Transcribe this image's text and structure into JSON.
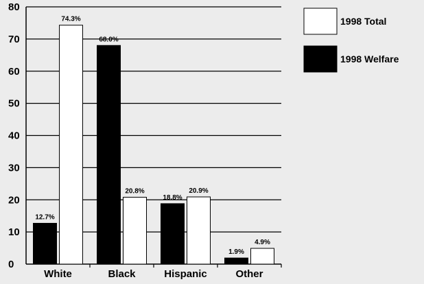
{
  "chart_data": {
    "type": "bar",
    "categories": [
      "White",
      "Black",
      "Hispanic",
      "Other"
    ],
    "series": [
      {
        "name": "1998 Welfare",
        "color": "#000000",
        "values": [
          12.7,
          68.0,
          18.8,
          1.9
        ],
        "labels": [
          "12.7%",
          "68.0%",
          "18.8%",
          "1.9%"
        ]
      },
      {
        "name": "1998 Total",
        "color": "#ffffff",
        "values": [
          74.3,
          20.8,
          20.9,
          4.9
        ],
        "labels": [
          "74.3%",
          "20.8%",
          "20.9%",
          "4.9%"
        ]
      }
    ],
    "ylim": [
      0,
      80
    ],
    "yticks": [
      "0",
      "10",
      "20",
      "30",
      "40",
      "50",
      "60",
      "70",
      "80"
    ],
    "grid": true,
    "legend_position": "top-right",
    "legend_order": [
      1,
      0
    ]
  }
}
